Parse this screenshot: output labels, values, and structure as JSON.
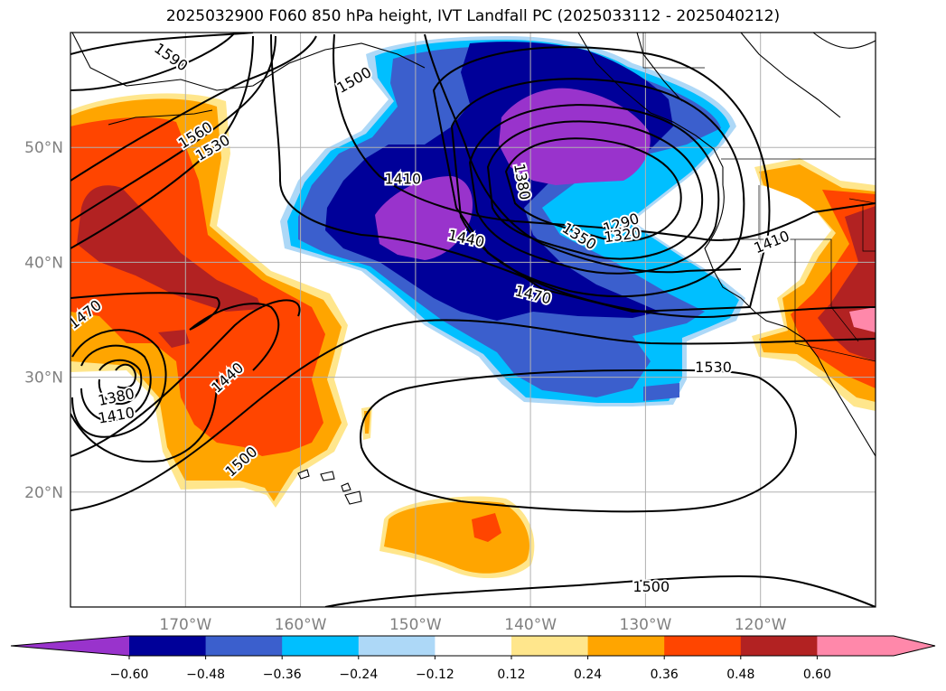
{
  "title": "2025032900 F060 850 hPa height, IVT Landfall PC (2025033112 - 2025040212)",
  "map": {
    "lon_range": [
      -180,
      -110
    ],
    "lat_range": [
      10,
      60
    ],
    "lat_labels": [
      {
        "lat": 50,
        "text": "50°N"
      },
      {
        "lat": 40,
        "text": "40°N"
      },
      {
        "lat": 30,
        "text": "30°N"
      },
      {
        "lat": 20,
        "text": "20°N"
      }
    ],
    "lon_labels": [
      {
        "lon": -170,
        "text": "170°W"
      },
      {
        "lon": -160,
        "text": "160°W"
      },
      {
        "lon": -150,
        "text": "150°W"
      },
      {
        "lon": -140,
        "text": "140°W"
      },
      {
        "lon": -130,
        "text": "130°W"
      },
      {
        "lon": -120,
        "text": "120°W"
      }
    ],
    "contour_labels": [
      {
        "text": "1590",
        "lon": -171.3,
        "lat": 57.8,
        "rot": 35
      },
      {
        "text": "1500",
        "lon": -155.3,
        "lat": 55.8,
        "rot": -30
      },
      {
        "text": "1560",
        "lon": -169.1,
        "lat": 51.0,
        "rot": -32
      },
      {
        "text": "1530",
        "lon": -167.6,
        "lat": 49.9,
        "rot": -30
      },
      {
        "text": "1410",
        "lon": -151.1,
        "lat": 47.2,
        "rot": 0
      },
      {
        "text": "1380",
        "lon": -140.8,
        "lat": 47.0,
        "rot": 80
      },
      {
        "text": "1440",
        "lon": -145.6,
        "lat": 42.0,
        "rot": 12
      },
      {
        "text": "1290",
        "lon": -132.1,
        "lat": 43.3,
        "rot": -18
      },
      {
        "text": "1350",
        "lon": -135.8,
        "lat": 42.2,
        "rot": 32
      },
      {
        "text": "1320",
        "lon": -132.0,
        "lat": 42.3,
        "rot": -8
      },
      {
        "text": "1410",
        "lon": -119.0,
        "lat": 41.7,
        "rot": -22
      },
      {
        "text": "1470",
        "lon": -178.7,
        "lat": 35.4,
        "rot": -38
      },
      {
        "text": "1470",
        "lon": -139.8,
        "lat": 37.1,
        "rot": 14
      },
      {
        "text": "1530",
        "lon": -124.1,
        "lat": 30.8,
        "rot": 0
      },
      {
        "text": "1440",
        "lon": -166.3,
        "lat": 29.9,
        "rot": -42
      },
      {
        "text": "1380",
        "lon": -176.0,
        "lat": 28.2,
        "rot": -12
      },
      {
        "text": "1410",
        "lon": -176.0,
        "lat": 26.6,
        "rot": -10
      },
      {
        "text": "1500",
        "lon": -165.1,
        "lat": 22.6,
        "rot": -42
      },
      {
        "text": "1500",
        "lon": -129.5,
        "lat": 11.7,
        "rot": 0
      }
    ]
  },
  "colorbar": {
    "tick_labels": [
      "−0.60",
      "−0.48",
      "−0.36",
      "−0.24",
      "−0.12",
      "0.12",
      "0.24",
      "0.36",
      "0.48",
      "0.60"
    ],
    "colors": [
      "#9933cc",
      "#000099",
      "#3b5fcd",
      "#00bfff",
      "#add8f7",
      "#ffffff",
      "#ffe68c",
      "#ffa500",
      "#ff4500",
      "#b22222",
      "#ff88aa"
    ]
  }
}
